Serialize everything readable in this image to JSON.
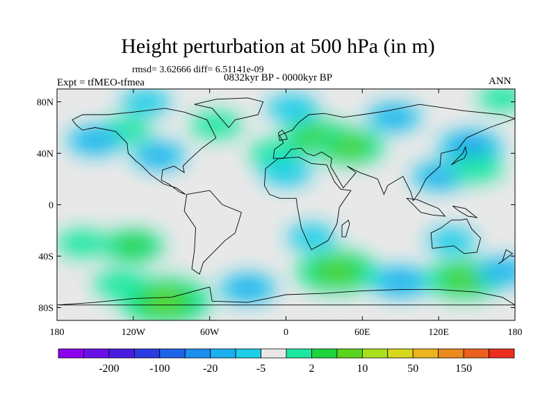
{
  "chart_data": {
    "type": "heatmap",
    "title": "Height perturbation at 500 hPa (in m)",
    "stats": "rmsd= 3.62666 diff= 6.51141e-09",
    "left_label": "Expt = tfMEO-tfmea",
    "center_label": "0832kyr BP - 0000kyr BP",
    "right_label": "ANN",
    "x_ticks": [
      "180",
      "120W",
      "60W",
      "0",
      "60E",
      "120E",
      "180"
    ],
    "y_ticks": [
      "80N",
      "40N",
      "0",
      "40S",
      "80S"
    ],
    "lon_range": [
      -180,
      180
    ],
    "lat_range": [
      -90,
      90
    ],
    "colorbar": {
      "colors": [
        "#8b00f0",
        "#6a0fe8",
        "#4a1ce0",
        "#2b3be0",
        "#1e63e8",
        "#1e8ef0",
        "#1ab0f0",
        "#1ecde8",
        "#e8e8e8",
        "#1ee8a0",
        "#1ed43c",
        "#5ad41e",
        "#a8e01e",
        "#d8d81e",
        "#ecb41e",
        "#ec8a1e",
        "#ec601e",
        "#ec2e1e"
      ],
      "labels": [
        "-200",
        "-100",
        "-20",
        "-5",
        "2",
        "10",
        "50",
        "150"
      ],
      "label_after_box": [
        1,
        3,
        5,
        7,
        9,
        11,
        13,
        15
      ]
    },
    "field": [
      {
        "lon": 25,
        "lat": 52,
        "value": 12
      },
      {
        "lon": -55,
        "lat": 62,
        "value": 4
      },
      {
        "lon": -10,
        "lat": 40,
        "value": 3
      },
      {
        "lon": 50,
        "lat": 45,
        "value": 11
      },
      {
        "lon": -125,
        "lat": 58,
        "value": 3
      },
      {
        "lon": 145,
        "lat": 45,
        "value": -9
      },
      {
        "lon": -150,
        "lat": 50,
        "value": -6
      },
      {
        "lon": 85,
        "lat": 68,
        "value": -5
      },
      {
        "lon": 5,
        "lat": 75,
        "value": -4
      },
      {
        "lon": -110,
        "lat": 80,
        "value": -3
      },
      {
        "lon": 170,
        "lat": 83,
        "value": 3
      },
      {
        "lon": -100,
        "lat": 38,
        "value": -5
      },
      {
        "lon": 0,
        "lat": 25,
        "value": -4
      },
      {
        "lon": 120,
        "lat": 22,
        "value": -5
      },
      {
        "lon": 150,
        "lat": 28,
        "value": 4
      },
      {
        "lon": -160,
        "lat": -30,
        "value": 4
      },
      {
        "lon": -120,
        "lat": -32,
        "value": 8
      },
      {
        "lon": -95,
        "lat": -75,
        "value": 22
      },
      {
        "lon": -130,
        "lat": -62,
        "value": 5
      },
      {
        "lon": -30,
        "lat": -65,
        "value": -6
      },
      {
        "lon": 40,
        "lat": -52,
        "value": 16
      },
      {
        "lon": 90,
        "lat": -60,
        "value": -7
      },
      {
        "lon": 140,
        "lat": -58,
        "value": 14
      },
      {
        "lon": 170,
        "lat": -52,
        "value": -5
      },
      {
        "lon": 130,
        "lat": -28,
        "value": -3
      },
      {
        "lon": 20,
        "lat": -25,
        "value": -3
      },
      {
        "lon": -65,
        "lat": 0,
        "value": 0
      }
    ]
  }
}
